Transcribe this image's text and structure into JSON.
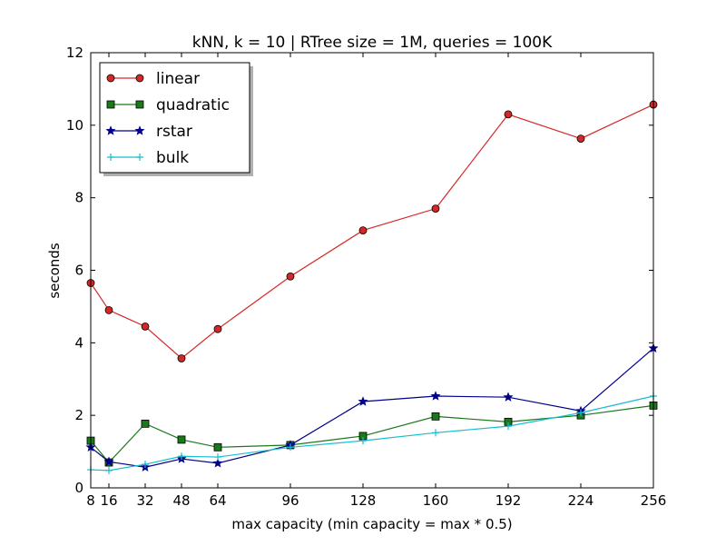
{
  "chart_data": {
    "type": "line",
    "title": "kNN, k = 10 | RTree size = 1M, queries = 100K",
    "xlabel": "max capacity (min capacity = max * 0.5)",
    "ylabel": "seconds",
    "xlim": [
      8,
      256
    ],
    "ylim": [
      0,
      12
    ],
    "x_ticks": [
      8,
      16,
      32,
      48,
      64,
      96,
      128,
      160,
      192,
      224,
      256
    ],
    "y_ticks": [
      0,
      2,
      4,
      6,
      8,
      10,
      12
    ],
    "grid": false,
    "legend_position": "top-left",
    "x": [
      8,
      16,
      32,
      48,
      64,
      96,
      128,
      160,
      192,
      224,
      256
    ],
    "series": [
      {
        "name": "linear",
        "color": "#d62728",
        "marker": "circle",
        "values": [
          5.65,
          4.9,
          4.45,
          3.57,
          4.38,
          5.83,
          7.1,
          7.7,
          10.3,
          9.63,
          10.57
        ]
      },
      {
        "name": "quadratic",
        "color": "#1a7a1a",
        "marker": "square",
        "values": [
          1.3,
          0.7,
          1.77,
          1.33,
          1.12,
          1.18,
          1.43,
          1.97,
          1.82,
          2.0,
          2.27
        ]
      },
      {
        "name": "rstar",
        "color": "#00008b",
        "marker": "star",
        "values": [
          1.12,
          0.72,
          0.57,
          0.8,
          0.68,
          1.18,
          2.38,
          2.53,
          2.5,
          2.12,
          3.85
        ]
      },
      {
        "name": "bulk",
        "color": "#17becf",
        "marker": "plus",
        "values": [
          0.5,
          0.48,
          0.65,
          0.87,
          0.85,
          1.12,
          1.3,
          1.52,
          1.7,
          2.07,
          2.53
        ]
      }
    ]
  }
}
